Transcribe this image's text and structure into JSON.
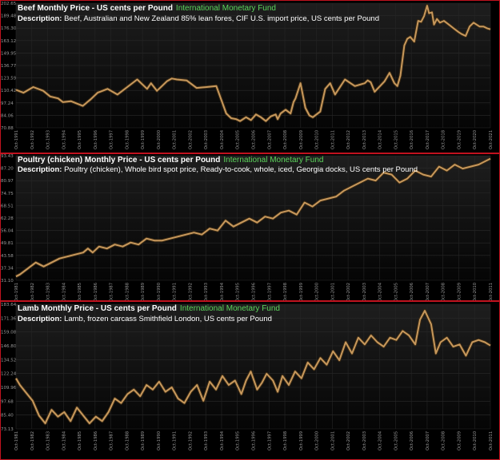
{
  "desc_label": "Description:",
  "chart_data": [
    {
      "type": "line",
      "title": "Beef Monthly Price - US cents per Pound",
      "source": "International Monetary Fund",
      "description": "Beef, Australian and New Zealand 85% lean fores, CIF U.S. import price, US cents per Pound",
      "ylim": [
        70.88,
        202.65
      ],
      "yticks": [
        "202.65",
        "189.48",
        "176.30",
        "163.12",
        "149.95",
        "136.77",
        "123.59",
        "110.42",
        "97.24",
        "84.06",
        "70.88"
      ],
      "xticks": [
        "Oct-1991",
        "Oct-1992",
        "Oct-1993",
        "Oct-1994",
        "Oct-1995",
        "Oct-1996",
        "Oct-1997",
        "Oct-1998",
        "Oct-1999",
        "Oct-2000",
        "Oct-2001",
        "Oct-2002",
        "Oct-2003",
        "Oct-2004",
        "Oct-2005",
        "Oct-2006",
        "Oct-2007",
        "Oct-2008",
        "Oct-2009",
        "Oct-2010",
        "Oct-2011",
        "Oct-2012",
        "Oct-2013",
        "Oct-2014",
        "Oct-2015",
        "Oct-2016",
        "Oct-2017",
        "Oct-2018",
        "Oct-2019",
        "Oct-2020",
        "Oct-2021"
      ],
      "x": [
        1991.75,
        1992.5,
        1993.5,
        1994.5,
        1995.2,
        1996.0,
        1996.5,
        1997.3,
        1998.5,
        1999.3,
        2000.0,
        2001.0,
        2002.0,
        2003.0,
        2004.0,
        2005.0,
        2005.4,
        2006.0,
        2006.5,
        2007.0,
        2007.5,
        2008.0,
        2009.0,
        2010.0,
        2011.0,
        2012.0,
        2013.0,
        2013.5,
        2014.0,
        2014.4,
        2015.0,
        2015.5,
        2016.0,
        2016.5,
        2017.0,
        2017.5,
        2018.0,
        2018.2,
        2018.5,
        2019.0,
        2019.5,
        2019.8,
        2020.0,
        2020.5,
        2021.0,
        2021.4,
        2021.75
      ],
      "y": [
        111,
        108,
        114,
        110,
        104,
        102,
        98,
        99,
        94,
        101,
        108,
        112,
        106,
        114,
        122,
        112,
        118,
        110,
        115,
        120,
        123,
        122,
        121,
        113,
        114,
        115,
        86,
        81,
        80,
        78,
        82,
        79,
        85,
        82,
        78,
        83,
        85,
        80,
        86,
        90,
        86,
        98,
        102,
        118,
        92,
        84,
        82
      ],
      "x2": [
        2021.75,
        2022.5,
        2023.0,
        2023.5,
        2024.0,
        2025.0,
        2026.0,
        2027.0,
        2027.3,
        2027.6,
        2028.0,
        2029.0,
        2029.5,
        2030.0,
        2030.3,
        2030.6,
        2031.0,
        2031.3,
        2031.6,
        2032.0,
        2032.4,
        2032.7,
        2033.0,
        2033.3,
        2033.5,
        2033.8,
        2034.0,
        2034.3,
        2034.6,
        2035.0,
        2035.5,
        2036.0,
        2036.5,
        2036.8,
        2037.2,
        2037.6,
        2038.0,
        2038.3,
        2038.6,
        2039.0,
        2039.4,
        2039.7
      ],
      "y2": [
        82,
        88,
        112,
        118,
        106,
        122,
        115,
        118,
        121,
        119,
        109,
        120,
        129,
        118,
        115,
        126,
        158,
        165,
        167,
        162,
        184,
        183,
        189,
        200,
        192,
        193,
        180,
        186,
        182,
        184,
        180,
        176,
        172,
        170,
        168,
        178,
        182,
        180,
        178,
        178,
        176,
        175
      ]
    },
    {
      "type": "line",
      "title": "Poultry (chicken) Monthly Price - US cents per Pound",
      "source": "International Monetary Fund",
      "description": "Poultry (chicken), Whole bird spot price, Ready-to-cook, whole, iced, Georgia docks, US cents per Pound",
      "ylim": [
        31.1,
        93.43
      ],
      "yticks": [
        "93.43",
        "87.20",
        "80.97",
        "74.75",
        "68.51",
        "62.28",
        "56.04",
        "49.81",
        "43.58",
        "37.34",
        "31.10"
      ],
      "xticks": [
        "Oct-1981",
        "Oct-1982",
        "Oct-1983",
        "Oct-1984",
        "Oct-1985",
        "Oct-1986",
        "Oct-1987",
        "Oct-1988",
        "Oct-1989",
        "Oct-1990",
        "Oct-1991",
        "Oct-1992",
        "Oct-1993",
        "Oct-1994",
        "Oct-1995",
        "Oct-1996",
        "Oct-1997",
        "Oct-1998",
        "Oct-1999",
        "Oct-2000",
        "Oct-2001",
        "Oct-2002",
        "Oct-2003",
        "Oct-2004",
        "Oct-2005",
        "Oct-2006",
        "Oct-2007",
        "Oct-2008",
        "Oct-2009",
        "Oct-2010",
        "Oct-2011"
      ],
      "x": [
        1981.75,
        1982.0,
        1982.5,
        1983.0,
        1983.5,
        1984.0,
        1984.5,
        1985.0,
        1985.5,
        1986.0,
        1986.3,
        1986.6,
        1987.0,
        1987.5,
        1988.0,
        1988.5,
        1989.0,
        1989.5,
        1990.0,
        1990.5,
        1991.0,
        1991.5,
        1992.0,
        1992.5,
        1993.0,
        1993.5,
        1994.0,
        1994.5,
        1995.0,
        1995.5,
        1996.0,
        1996.5,
        1997.0,
        1997.5,
        1998.0,
        1998.5,
        1999.0,
        1999.5,
        2000.0,
        2000.5,
        2001.0,
        2001.5,
        2002.0,
        2002.5,
        2003.0,
        2003.5,
        2004.0,
        2004.5,
        2005.0,
        2005.5,
        2006.0,
        2006.5,
        2007.0,
        2007.5,
        2008.0,
        2008.5,
        2009.0,
        2009.5,
        2010.0,
        2010.5,
        2011.0,
        2011.75
      ],
      "y": [
        33,
        34,
        37,
        40,
        38,
        40,
        42,
        43,
        44,
        45,
        47,
        45,
        48,
        47,
        49,
        48,
        50,
        49,
        52,
        51,
        51,
        52,
        53,
        54,
        55,
        54,
        57,
        56,
        61,
        58,
        60,
        62,
        60,
        63,
        62,
        65,
        66,
        64,
        70,
        68,
        71,
        72,
        73,
        76,
        78,
        80,
        82,
        81,
        85,
        84,
        80,
        82,
        86,
        84,
        83,
        88,
        86,
        89,
        87,
        88,
        89,
        92
      ]
    },
    {
      "type": "line",
      "title": "Lamb Monthly Price - US cents per Pound",
      "source": "International Monetary Fund",
      "description": "Lamb, frozen carcass Smithfield London, US cents per Pound",
      "ylim": [
        73.13,
        183.64
      ],
      "yticks": [
        "183.64",
        "171.36",
        "159.08",
        "146.80",
        "134.52",
        "122.24",
        "109.96",
        "97.68",
        "85.40",
        "73.13"
      ],
      "xticks": [
        "Oct-1981",
        "Oct-1982",
        "Oct-1983",
        "Oct-1984",
        "Oct-1985",
        "Oct-1986",
        "Oct-1987",
        "Oct-1988",
        "Oct-1989",
        "Oct-1990",
        "Oct-1991",
        "Oct-1992",
        "Oct-1993",
        "Oct-1994",
        "Oct-1995",
        "Oct-1996",
        "Oct-1997",
        "Oct-1998",
        "Oct-1999",
        "Oct-2000",
        "Oct-2001",
        "Oct-2002",
        "Oct-2003",
        "Oct-2004",
        "Oct-2005",
        "Oct-2006",
        "Oct-2007",
        "Oct-2008",
        "Oct-2009",
        "Oct-2010",
        "Oct-2011"
      ],
      "x": [
        1981.75,
        1982.0,
        1982.4,
        1982.8,
        1983.2,
        1983.6,
        1984.0,
        1984.4,
        1984.8,
        1985.2,
        1985.6,
        1986.0,
        1986.4,
        1986.8,
        1987.2,
        1987.6,
        1988.0,
        1988.4,
        1988.8,
        1989.2,
        1989.6,
        1990.0,
        1990.4,
        1990.8,
        1991.2,
        1991.6,
        1992.0,
        1992.4,
        1992.8,
        1993.2,
        1993.6,
        1994.0,
        1994.4,
        1994.8,
        1995.2,
        1995.6,
        1996.0,
        1996.3,
        1996.6,
        1997.0,
        1997.3,
        1997.6,
        1998.0,
        1998.3,
        1998.6,
        1999.0,
        1999.4,
        1999.8,
        2000.2,
        2000.6,
        2001.0,
        2001.4,
        2001.8,
        2002.2,
        2002.6,
        2003.0,
        2003.4,
        2003.8,
        2004.2,
        2004.6,
        2005.0,
        2005.4,
        2005.8,
        2006.2,
        2006.6,
        2007.0,
        2007.3,
        2007.6,
        2008.0,
        2008.3,
        2008.6,
        2009.0,
        2009.4,
        2009.8,
        2010.2,
        2010.6,
        2011.0,
        2011.4,
        2011.75
      ],
      "y": [
        118,
        112,
        105,
        98,
        85,
        78,
        90,
        84,
        88,
        80,
        92,
        85,
        78,
        84,
        80,
        88,
        100,
        96,
        104,
        108,
        102,
        112,
        108,
        115,
        106,
        110,
        100,
        96,
        106,
        112,
        98,
        115,
        108,
        120,
        112,
        116,
        104,
        116,
        124,
        108,
        114,
        122,
        116,
        106,
        120,
        112,
        124,
        118,
        132,
        126,
        136,
        130,
        142,
        134,
        150,
        140,
        154,
        148,
        156,
        150,
        146,
        154,
        152,
        160,
        156,
        148,
        170,
        178,
        166,
        140,
        150,
        154,
        146,
        148,
        138,
        150,
        152,
        150,
        147
      ]
    }
  ]
}
